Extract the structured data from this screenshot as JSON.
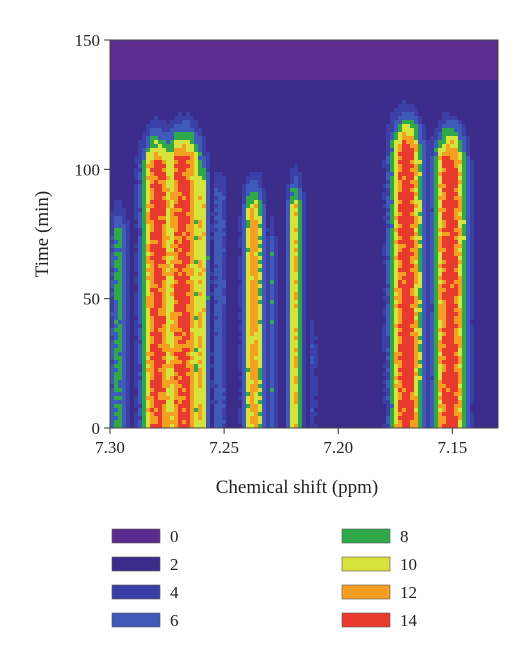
{
  "chart_data": {
    "type": "heatmap",
    "xlabel": "Chemical shift (ppm)",
    "ylabel": "Time (min)",
    "xlim": [
      7.3,
      7.13
    ],
    "ylim": [
      0,
      150
    ],
    "x_ticks": [
      "7.30",
      "7.25",
      "7.20",
      "7.15"
    ],
    "x_tick_values": [
      7.3,
      7.25,
      7.2,
      7.15
    ],
    "y_ticks": [
      "0",
      "50",
      "100",
      "150"
    ],
    "y_tick_values": [
      0,
      50,
      100,
      150
    ],
    "grid": false,
    "legend_position": "bottom",
    "colorscale": [
      {
        "label": "0",
        "value": 0,
        "color": "#5b2c8f"
      },
      {
        "label": "2",
        "value": 2,
        "color": "#3b2c8c"
      },
      {
        "label": "4",
        "value": 4,
        "color": "#3c3fa6"
      },
      {
        "label": "6",
        "value": 6,
        "color": "#3f5ab8"
      },
      {
        "label": "8",
        "value": 8,
        "color": "#2fa84a"
      },
      {
        "label": "10",
        "value": 10,
        "color": "#d6e33a"
      },
      {
        "label": "12",
        "value": 12,
        "color": "#f5a020"
      },
      {
        "label": "14",
        "value": 14,
        "color": "#e83a2e"
      }
    ],
    "background_level": 3,
    "top_band": {
      "from_time": 135,
      "level": 1.2
    },
    "peaks": [
      {
        "center_ppm": 7.296,
        "width_ppm": 0.004,
        "level": 8.5,
        "top_time": 95
      },
      {
        "center_ppm": 7.279,
        "width_ppm": 0.006,
        "level": 15.0,
        "top_time": 122
      },
      {
        "center_ppm": 7.268,
        "width_ppm": 0.007,
        "level": 15.0,
        "top_time": 124
      },
      {
        "center_ppm": 7.26,
        "width_ppm": 0.003,
        "level": 12.0,
        "top_time": 115
      },
      {
        "center_ppm": 7.252,
        "width_ppm": 0.003,
        "level": 7.0,
        "top_time": 110
      },
      {
        "center_ppm": 7.237,
        "width_ppm": 0.004,
        "level": 13.0,
        "top_time": 103
      },
      {
        "center_ppm": 7.229,
        "width_ppm": 0.002,
        "level": 7.5,
        "top_time": 90
      },
      {
        "center_ppm": 7.219,
        "width_ppm": 0.003,
        "level": 12.0,
        "top_time": 105
      },
      {
        "center_ppm": 7.211,
        "width_ppm": 0.0015,
        "level": 6.0,
        "top_time": 55
      },
      {
        "center_ppm": 7.17,
        "width_ppm": 0.006,
        "level": 15.5,
        "top_time": 128
      },
      {
        "center_ppm": 7.151,
        "width_ppm": 0.006,
        "level": 15.5,
        "top_time": 124
      }
    ]
  }
}
